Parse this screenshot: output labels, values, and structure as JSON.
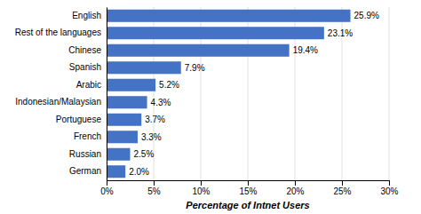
{
  "chart_data": {
    "type": "bar",
    "orientation": "horizontal",
    "categories": [
      "German",
      "Russian",
      "French",
      "Portuguese",
      "Indonesian/Malaysian",
      "Arabic",
      "Spanish",
      "Chinese",
      "Rest of the languages",
      "English"
    ],
    "values": [
      2.0,
      2.5,
      3.3,
      3.7,
      4.3,
      5.2,
      7.9,
      19.4,
      23.1,
      25.9
    ],
    "value_labels": [
      "2.0%",
      "2.5%",
      "3.3%",
      "3.7%",
      "4.3%",
      "5.2%",
      "7.9%",
      "19.4%",
      "23.1%",
      "25.9%"
    ],
    "data_labels": true,
    "color": "#4472C4",
    "xlabel": "Percentage of Intnet Users",
    "xlim": [
      0,
      30
    ],
    "xticks": [
      {
        "value": 0,
        "label": "0%"
      },
      {
        "value": 5,
        "label": "5%"
      },
      {
        "value": 10,
        "label": "10%"
      },
      {
        "value": 15,
        "label": "15%"
      },
      {
        "value": 20,
        "label": "20%"
      },
      {
        "value": 25,
        "label": "25%"
      },
      {
        "value": 30,
        "label": "30%"
      }
    ],
    "grid": true
  }
}
